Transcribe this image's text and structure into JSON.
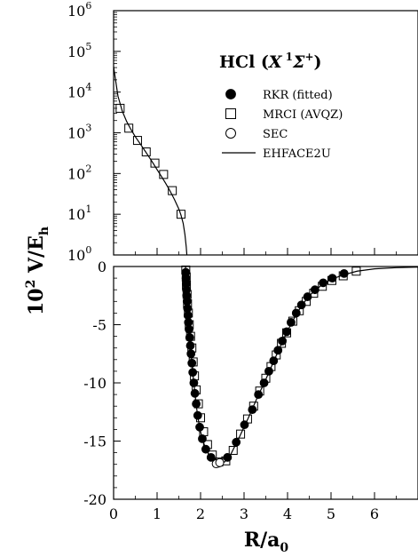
{
  "chart_data": {
    "title": {
      "prefix": "HCl (",
      "state_letter": "X",
      "multiplicity": "1",
      "term": "Σ",
      "parity": "+",
      "suffix": ")"
    },
    "ylabel": {
      "base": "10",
      "exp": "2",
      "main": " V/E",
      "sub": "h"
    },
    "xlabel": {
      "main": "R/a",
      "sub": "0"
    },
    "xlim": [
      0,
      7
    ],
    "x_ticks": [
      "0",
      "1",
      "2",
      "3",
      "4",
      "5",
      "6"
    ],
    "panels": [
      {
        "name": "repulsive",
        "type": "scatter",
        "y_scale": "log",
        "ylim": [
          1,
          1000000
        ],
        "y_tick_exponents": [
          "0",
          "1",
          "2",
          "3",
          "4",
          "5",
          "6"
        ],
        "y_tick_base": "10",
        "series": [
          {
            "name": "MRCI (AVQZ)",
            "marker": "open-square",
            "points": [
              [
                0.15,
                4000
              ],
              [
                0.35,
                1300
              ],
              [
                0.55,
                650
              ],
              [
                0.75,
                340
              ],
              [
                0.95,
                180
              ],
              [
                1.15,
                95
              ],
              [
                1.35,
                38
              ],
              [
                1.55,
                10
              ]
            ]
          },
          {
            "name": "EHFACE2U",
            "marker": "line",
            "points": [
              [
                0.0,
                42000
              ],
              [
                0.1,
                8000
              ],
              [
                0.2,
                3400
              ],
              [
                0.3,
                1900
              ],
              [
                0.4,
                1200
              ],
              [
                0.5,
                800
              ],
              [
                0.6,
                560
              ],
              [
                0.7,
                390
              ],
              [
                0.8,
                270
              ],
              [
                0.9,
                185
              ],
              [
                1.0,
                125
              ],
              [
                1.1,
                85
              ],
              [
                1.2,
                57
              ],
              [
                1.3,
                37
              ],
              [
                1.4,
                23
              ],
              [
                1.5,
                13.5
              ],
              [
                1.55,
                9.5
              ],
              [
                1.6,
                6
              ],
              [
                1.64,
                3.2
              ],
              [
                1.67,
                1.6
              ],
              [
                1.685,
                1.0
              ]
            ]
          }
        ]
      },
      {
        "name": "well",
        "type": "scatter",
        "y_scale": "linear",
        "ylim": [
          -20,
          0
        ],
        "y_ticks": [
          "0",
          "-5",
          "-10",
          "-15",
          "-20"
        ],
        "series": [
          {
            "name": "RKR (fitted)",
            "marker": "filled-circle",
            "points": [
              [
                1.66,
                -0.5
              ],
              [
                1.665,
                -1.0
              ],
              [
                1.67,
                -1.5
              ],
              [
                1.675,
                -2.0
              ],
              [
                1.68,
                -2.5
              ],
              [
                1.69,
                -3.0
              ],
              [
                1.7,
                -3.6
              ],
              [
                1.71,
                -4.2
              ],
              [
                1.72,
                -4.8
              ],
              [
                1.735,
                -5.4
              ],
              [
                1.75,
                -6.1
              ],
              [
                1.765,
                -6.8
              ],
              [
                1.78,
                -7.5
              ],
              [
                1.8,
                -8.3
              ],
              [
                1.82,
                -9.1
              ],
              [
                1.845,
                -10.0
              ],
              [
                1.87,
                -10.9
              ],
              [
                1.9,
                -11.8
              ],
              [
                1.935,
                -12.8
              ],
              [
                1.98,
                -13.8
              ],
              [
                2.04,
                -14.8
              ],
              [
                2.12,
                -15.7
              ],
              [
                2.24,
                -16.4
              ],
              [
                2.41,
                -16.9
              ],
              [
                2.62,
                -16.4
              ],
              [
                2.82,
                -15.1
              ],
              [
                3.01,
                -13.6
              ],
              [
                3.19,
                -12.3
              ],
              [
                3.33,
                -11.0
              ],
              [
                3.46,
                -10.0
              ],
              [
                3.57,
                -9.0
              ],
              [
                3.68,
                -8.1
              ],
              [
                3.78,
                -7.2
              ],
              [
                3.88,
                -6.4
              ],
              [
                3.98,
                -5.6
              ],
              [
                4.08,
                -4.8
              ],
              [
                4.2,
                -4.0
              ],
              [
                4.32,
                -3.3
              ],
              [
                4.46,
                -2.6
              ],
              [
                4.63,
                -2.0
              ],
              [
                4.82,
                -1.4
              ],
              [
                5.03,
                -1.0
              ],
              [
                5.3,
                -0.6
              ]
            ]
          },
          {
            "name": "MRCI (AVQZ)",
            "marker": "open-square",
            "points": [
              [
                1.66,
                -0.3
              ],
              [
                1.67,
                -0.9
              ],
              [
                1.675,
                -1.6
              ],
              [
                1.69,
                -2.4
              ],
              [
                1.7,
                -3.2
              ],
              [
                1.72,
                -4.0
              ],
              [
                1.74,
                -5.0
              ],
              [
                1.77,
                -6.0
              ],
              [
                1.8,
                -7.0
              ],
              [
                1.83,
                -8.2
              ],
              [
                1.86,
                -9.4
              ],
              [
                1.9,
                -10.6
              ],
              [
                1.95,
                -11.8
              ],
              [
                2.0,
                -13.0
              ],
              [
                2.07,
                -14.2
              ],
              [
                2.16,
                -15.3
              ],
              [
                2.27,
                -16.2
              ],
              [
                2.42,
                -16.8
              ],
              [
                2.58,
                -16.7
              ],
              [
                2.75,
                -15.8
              ],
              [
                2.92,
                -14.4
              ],
              [
                3.08,
                -13.1
              ],
              [
                3.22,
                -12.0
              ],
              [
                3.36,
                -10.7
              ],
              [
                3.5,
                -9.6
              ],
              [
                3.62,
                -8.6
              ],
              [
                3.74,
                -7.6
              ],
              [
                3.86,
                -6.6
              ],
              [
                3.98,
                -5.7
              ],
              [
                4.12,
                -4.7
              ],
              [
                4.27,
                -3.8
              ],
              [
                4.43,
                -3.0
              ],
              [
                4.6,
                -2.3
              ],
              [
                4.8,
                -1.7
              ],
              [
                5.02,
                -1.2
              ],
              [
                5.28,
                -0.8
              ],
              [
                5.58,
                -0.4
              ]
            ]
          },
          {
            "name": "SEC",
            "marker": "open-circle",
            "points": [
              [
                2.36,
                -16.95
              ],
              [
                2.44,
                -16.85
              ]
            ]
          },
          {
            "name": "EHFACE2U",
            "marker": "line",
            "points": [
              [
                1.655,
                0.0
              ],
              [
                1.66,
                -0.5
              ],
              [
                1.67,
                -1.5
              ],
              [
                1.68,
                -2.5
              ],
              [
                1.7,
                -3.6
              ],
              [
                1.72,
                -4.8
              ],
              [
                1.75,
                -6.1
              ],
              [
                1.78,
                -7.5
              ],
              [
                1.82,
                -9.1
              ],
              [
                1.87,
                -10.9
              ],
              [
                1.93,
                -12.8
              ],
              [
                2.0,
                -14.2
              ],
              [
                2.1,
                -15.5
              ],
              [
                2.22,
                -16.4
              ],
              [
                2.4,
                -16.95
              ],
              [
                2.55,
                -16.8
              ],
              [
                2.7,
                -16.1
              ],
              [
                2.9,
                -14.6
              ],
              [
                3.1,
                -13.0
              ],
              [
                3.3,
                -11.3
              ],
              [
                3.5,
                -9.7
              ],
              [
                3.7,
                -8.0
              ],
              [
                3.9,
                -6.3
              ],
              [
                4.1,
                -4.8
              ],
              [
                4.3,
                -3.5
              ],
              [
                4.5,
                -2.5
              ],
              [
                4.75,
                -1.7
              ],
              [
                5.0,
                -1.1
              ],
              [
                5.3,
                -0.7
              ],
              [
                5.6,
                -0.4
              ],
              [
                6.0,
                -0.2
              ],
              [
                6.5,
                -0.1
              ],
              [
                7.0,
                -0.05
              ]
            ]
          }
        ]
      }
    ],
    "legend": {
      "placement": "top-right",
      "entries": [
        {
          "label": "RKR (fitted)",
          "marker": "filled-circle"
        },
        {
          "label": "MRCI (AVQZ)",
          "marker": "open-square"
        },
        {
          "label": "SEC",
          "marker": "open-circle"
        },
        {
          "label": "EHFACE2U",
          "marker": "line"
        }
      ]
    }
  }
}
